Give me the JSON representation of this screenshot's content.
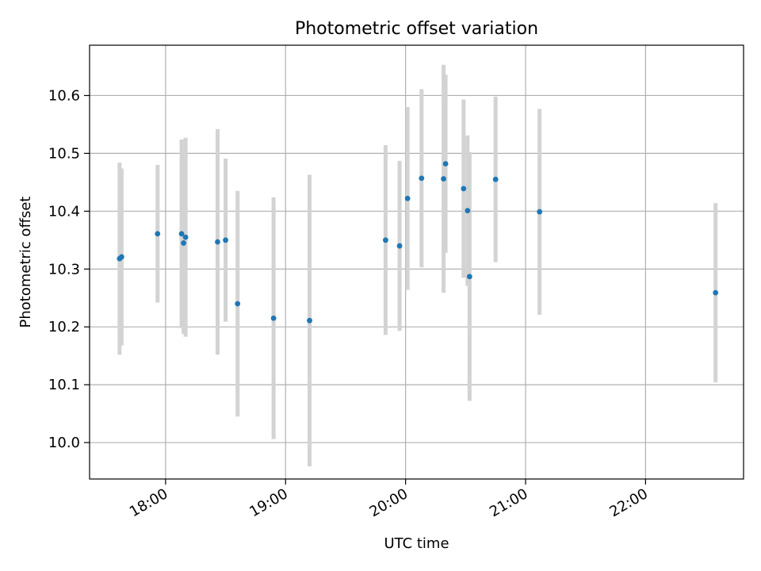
{
  "chart_data": {
    "type": "scatter",
    "title": "Photometric offset variation",
    "xlabel": "UTC time",
    "ylabel": "Photometric offset",
    "x_axis_type": "time",
    "xlim": [
      "17:22",
      "22:49"
    ],
    "ylim": [
      9.937,
      10.687
    ],
    "x_ticks": [
      "18:00",
      "19:00",
      "20:00",
      "21:00",
      "22:00"
    ],
    "y_ticks": [
      "10.0",
      "10.1",
      "10.2",
      "10.3",
      "10.4",
      "10.5",
      "10.6"
    ],
    "grid": true,
    "point_color": "#1f77b4",
    "errorbar_color": "#d3d3d3",
    "points": [
      {
        "x": "17:37",
        "y": 10.318,
        "err": 0.166
      },
      {
        "x": "17:38",
        "y": 10.321,
        "err": 0.153
      },
      {
        "x": "17:56",
        "y": 10.361,
        "err": 0.119
      },
      {
        "x": "18:08",
        "y": 10.361,
        "err": 0.163
      },
      {
        "x": "18:09",
        "y": 10.345,
        "err": 0.157
      },
      {
        "x": "18:10",
        "y": 10.355,
        "err": 0.172
      },
      {
        "x": "18:26",
        "y": 10.347,
        "err": 0.195
      },
      {
        "x": "18:30",
        "y": 10.35,
        "err": 0.141
      },
      {
        "x": "18:36",
        "y": 10.24,
        "err": 0.195
      },
      {
        "x": "18:54",
        "y": 10.215,
        "err": 0.209
      },
      {
        "x": "19:12",
        "y": 10.211,
        "err": 0.252
      },
      {
        "x": "19:50",
        "y": 10.35,
        "err": 0.164
      },
      {
        "x": "19:57",
        "y": 10.34,
        "err": 0.147
      },
      {
        "x": "20:01",
        "y": 10.422,
        "err": 0.158
      },
      {
        "x": "20:08",
        "y": 10.457,
        "err": 0.154
      },
      {
        "x": "20:19",
        "y": 10.456,
        "err": 0.197
      },
      {
        "x": "20:20",
        "y": 10.482,
        "err": 0.154
      },
      {
        "x": "20:29",
        "y": 10.439,
        "err": 0.154
      },
      {
        "x": "20:31",
        "y": 10.401,
        "err": 0.13
      },
      {
        "x": "20:32",
        "y": 10.287,
        "err": 0.215
      },
      {
        "x": "20:45",
        "y": 10.455,
        "err": 0.143
      },
      {
        "x": "21:07",
        "y": 10.399,
        "err": 0.178
      },
      {
        "x": "22:35",
        "y": 10.259,
        "err": 0.155
      }
    ]
  }
}
